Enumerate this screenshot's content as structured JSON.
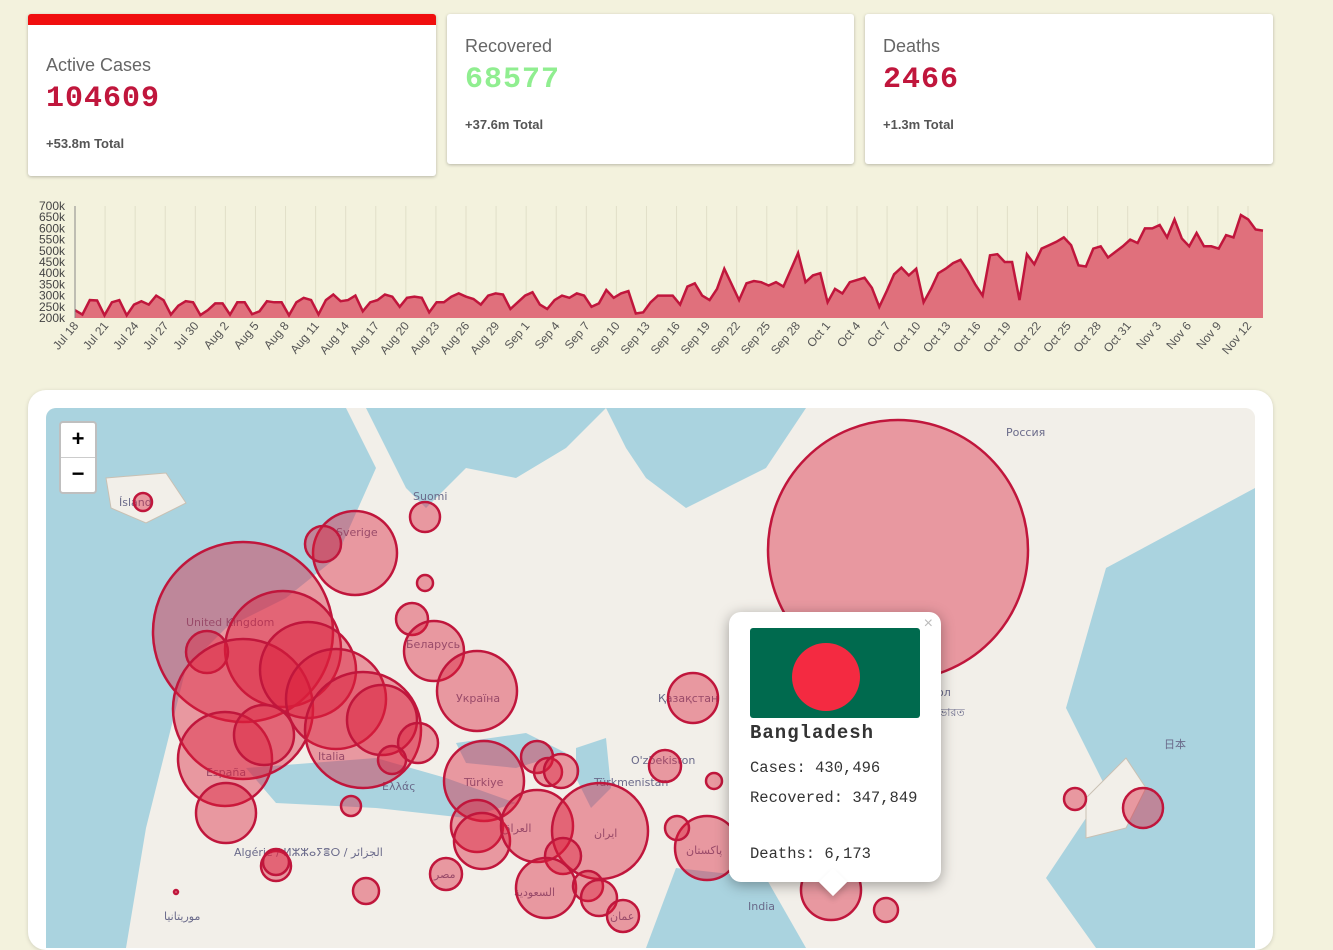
{
  "cards": [
    {
      "title": "Active Cases",
      "value": "104609",
      "total": "+53.8m  Total",
      "color": "#c0163c",
      "accent": "#f00f0f"
    },
    {
      "title": "Recovered",
      "value": "68577",
      "total": "+37.6m  Total",
      "color": "#90ee90"
    },
    {
      "title": "Deaths",
      "value": "2466",
      "total": "+1.3m  Total",
      "color": "#c0163c"
    }
  ],
  "chart_data": {
    "type": "area",
    "color": "#c0163c",
    "fill": "#e0707c",
    "y_ticks": [
      "200k",
      "250k",
      "300k",
      "350k",
      "400k",
      "450k",
      "500k",
      "550k",
      "600k",
      "650k",
      "700k"
    ],
    "ylim": [
      200000,
      700000
    ],
    "x_ticks": [
      "Jul 18",
      "Jul 21",
      "Jul 24",
      "Jul 27",
      "Jul 30",
      "Aug 2",
      "Aug 5",
      "Aug 8",
      "Aug 11",
      "Aug 14",
      "Aug 17",
      "Aug 20",
      "Aug 23",
      "Aug 26",
      "Aug 29",
      "Sep 1",
      "Sep 4",
      "Sep 7",
      "Sep 10",
      "Sep 13",
      "Sep 16",
      "Sep 19",
      "Sep 22",
      "Sep 25",
      "Sep 28",
      "Oct 1",
      "Oct 4",
      "Oct 7",
      "Oct 10",
      "Oct 13",
      "Oct 16",
      "Oct 19",
      "Oct 22",
      "Oct 25",
      "Oct 28",
      "Oct 31",
      "Nov 3",
      "Nov 6",
      "Nov 9",
      "Nov 12"
    ],
    "values": [
      235000,
      215000,
      280000,
      278000,
      212000,
      270000,
      280000,
      212000,
      260000,
      275000,
      260000,
      300000,
      280000,
      215000,
      255000,
      275000,
      270000,
      213000,
      235000,
      265000,
      265000,
      215000,
      270000,
      270000,
      217000,
      230000,
      275000,
      270000,
      270000,
      212000,
      270000,
      290000,
      280000,
      216000,
      280000,
      305000,
      275000,
      280000,
      300000,
      230000,
      270000,
      280000,
      305000,
      295000,
      250000,
      290000,
      295000,
      290000,
      225000,
      270000,
      270000,
      295000,
      310000,
      295000,
      285000,
      260000,
      300000,
      310000,
      305000,
      240000,
      270000,
      300000,
      315000,
      260000,
      240000,
      280000,
      300000,
      290000,
      310000,
      300000,
      250000,
      265000,
      325000,
      290000,
      310000,
      320000,
      220000,
      225000,
      270000,
      300000,
      300000,
      300000,
      260000,
      340000,
      355000,
      300000,
      280000,
      330000,
      420000,
      350000,
      280000,
      355000,
      365000,
      360000,
      345000,
      360000,
      340000,
      415000,
      490000,
      360000,
      390000,
      400000,
      270000,
      330000,
      310000,
      360000,
      370000,
      380000,
      335000,
      250000,
      320000,
      395000,
      425000,
      390000,
      420000,
      270000,
      330000,
      400000,
      420000,
      445000,
      460000,
      410000,
      350000,
      300000,
      480000,
      485000,
      450000,
      450000,
      280000,
      485000,
      440000,
      510000,
      525000,
      540000,
      560000,
      525000,
      435000,
      430000,
      510000,
      520000,
      470000,
      495000,
      520000,
      550000,
      535000,
      600000,
      600000,
      615000,
      560000,
      640000,
      555000,
      520000,
      580000,
      520000,
      520000,
      510000,
      570000,
      560000,
      660000,
      640000,
      595000,
      590000
    ]
  },
  "map": {
    "zoom_in": "+",
    "zoom_out": "−",
    "labels": [
      "Россия",
      "Ísland",
      "Suomi",
      "Sverige",
      "United Kingdom",
      "Беларусь",
      "Україна",
      "España",
      "Italia",
      "Ελλάς",
      "Türkiye",
      "Қазақстан",
      "O'zbekiston",
      "Türkmenistan",
      "العراق",
      "ایران",
      "پاکستان",
      "السعودية",
      "مصر",
      "Algérie / ⵍⵣⵣⴰⵢⴻⵔ / الجزائر",
      "موريتانيا",
      "عمان",
      "India",
      "日本",
      "ол",
      "ভারত"
    ],
    "popup": {
      "close": "×",
      "country": "Bangladesh",
      "cases": "Cases: 430,496",
      "recovered": "Recovered: 347,849",
      "deaths": "Deaths: 6,173"
    }
  }
}
